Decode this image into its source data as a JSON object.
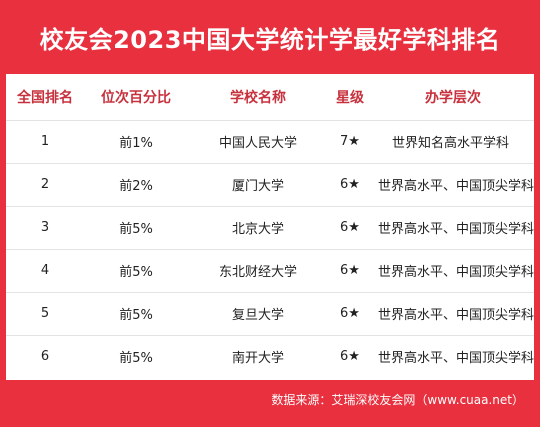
{
  "title": "校友会2023中国大学统计学最好学科排名",
  "table": {
    "headers": [
      "全国排名",
      "位次百分比",
      "学校名称",
      "星级",
      "办学层次"
    ],
    "rows": [
      {
        "rank": "1",
        "percentile": "前1%",
        "school": "中国人民大学",
        "stars": "7★",
        "level": "世界知名高水平学科"
      },
      {
        "rank": "2",
        "percentile": "前2%",
        "school": "厦门大学",
        "stars": "6★",
        "level": "世界高水平、中国顶尖学科"
      },
      {
        "rank": "3",
        "percentile": "前5%",
        "school": "北京大学",
        "stars": "6★",
        "level": "世界高水平、中国顶尖学科"
      },
      {
        "rank": "4",
        "percentile": "前5%",
        "school": "东北财经大学",
        "stars": "6★",
        "level": "世界高水平、中国顶尖学科"
      },
      {
        "rank": "5",
        "percentile": "前5%",
        "school": "复旦大学",
        "stars": "6★",
        "level": "世界高水平、中国顶尖学科"
      },
      {
        "rank": "6",
        "percentile": "前5%",
        "school": "南开大学",
        "stars": "6★",
        "level": "世界高水平、中国顶尖学科"
      }
    ]
  },
  "footer": "数据来源：艾瑞深校友会网（www.cuaa.net）",
  "colors": {
    "accent": "#e8303f",
    "header_text": "#c7313d"
  }
}
